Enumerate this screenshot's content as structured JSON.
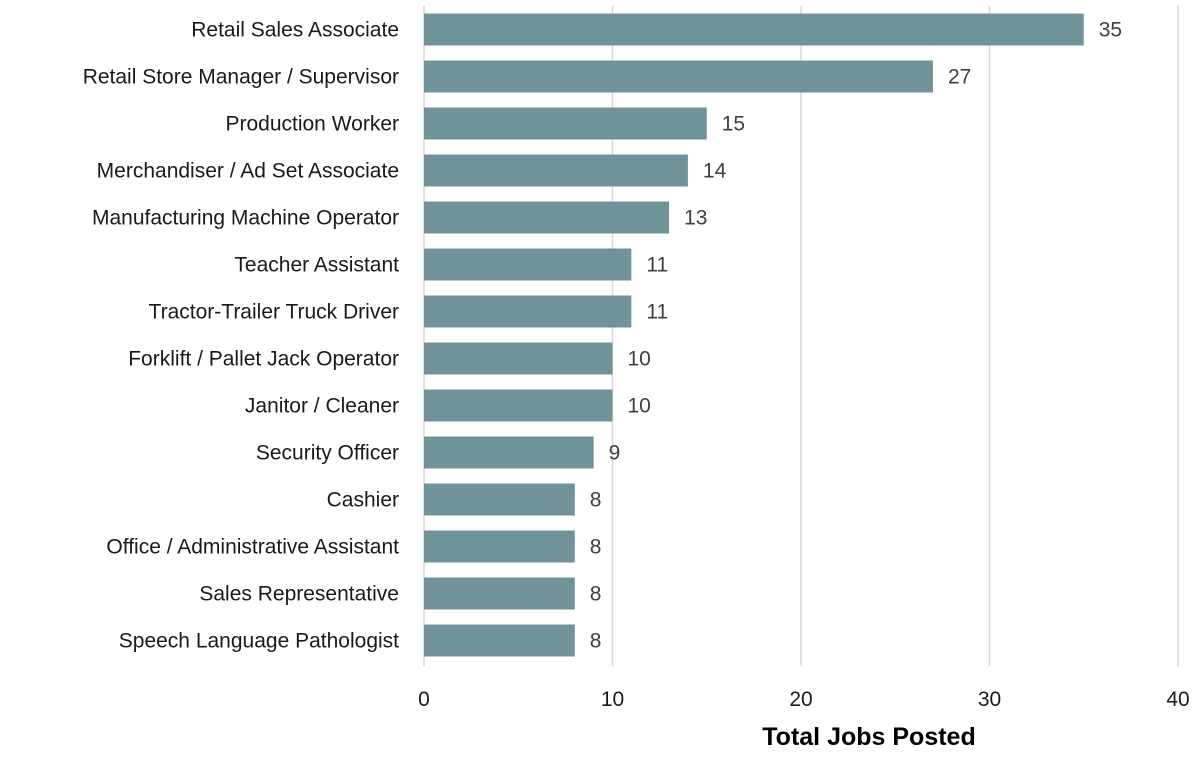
{
  "chart_data": {
    "type": "bar",
    "orientation": "horizontal",
    "categories": [
      "Retail Sales Associate",
      "Retail Store Manager / Supervisor",
      "Production Worker",
      "Merchandiser / Ad Set Associate",
      "Manufacturing Machine Operator",
      "Teacher Assistant",
      "Tractor-Trailer Truck Driver",
      "Forklift / Pallet Jack Operator",
      "Janitor / Cleaner",
      "Security Officer",
      "Cashier",
      "Office / Administrative Assistant",
      "Sales Representative",
      "Speech Language Pathologist"
    ],
    "values": [
      35,
      27,
      15,
      14,
      13,
      11,
      11,
      10,
      10,
      9,
      8,
      8,
      8,
      8
    ],
    "xlabel": "Total Jobs Posted",
    "ylabel": "",
    "xlim": [
      0,
      40
    ],
    "xticks": [
      0,
      10,
      20,
      30,
      40
    ],
    "grid": "vertical",
    "legend": "none",
    "data_labels": true,
    "bar_color": "#6f9399"
  }
}
